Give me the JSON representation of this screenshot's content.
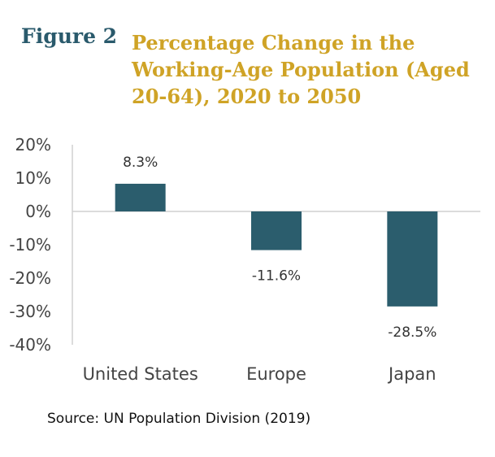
{
  "figure_label": "Figure 2",
  "source": "Source: UN Population Division (2019)",
  "chart_data": {
    "type": "bar",
    "title": "Percentage Change in the Working-Age Population (Aged 20-64), 2020 to 2050",
    "categories": [
      "United States",
      "Europe",
      "Japan"
    ],
    "values": [
      8.3,
      -11.6,
      -28.5
    ],
    "data_labels": [
      "8.3%",
      "-11.6%",
      "-28.5%"
    ],
    "ylim": [
      -40,
      20
    ],
    "yticks": [
      20,
      10,
      0,
      -10,
      -20,
      -30,
      -40
    ],
    "ytick_labels": [
      "20%",
      "10%",
      "0%",
      "-10%",
      "-20%",
      "-30%",
      "-40%"
    ],
    "xlabel": "",
    "ylabel": "",
    "grid": false,
    "bar_color": "#2b5d6d"
  }
}
